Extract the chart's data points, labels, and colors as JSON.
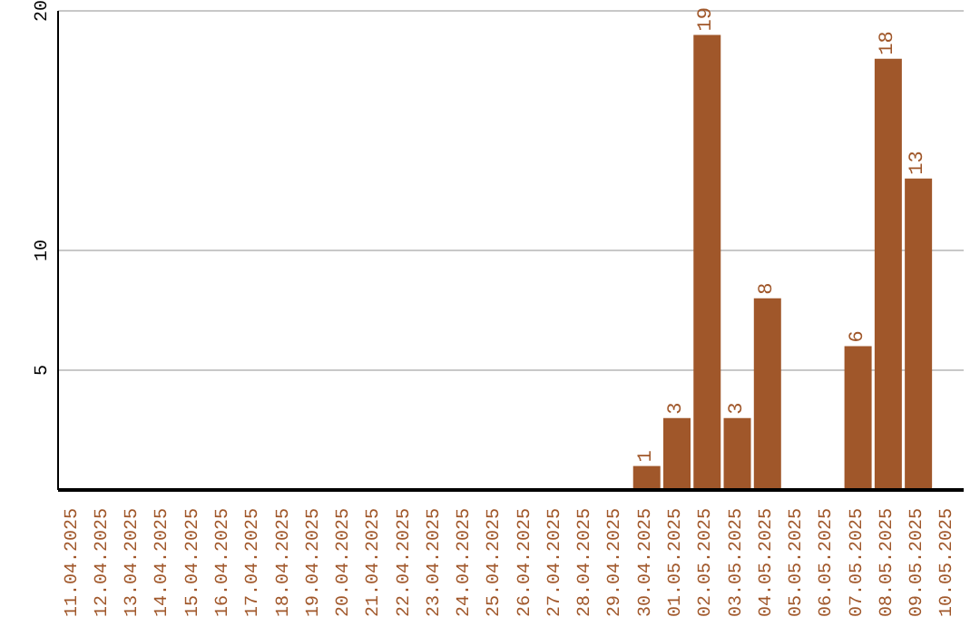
{
  "chart_data": {
    "type": "bar",
    "categories": [
      "11.04.2025",
      "12.04.2025",
      "13.04.2025",
      "14.04.2025",
      "15.04.2025",
      "16.04.2025",
      "17.04.2025",
      "18.04.2025",
      "19.04.2025",
      "20.04.2025",
      "21.04.2025",
      "22.04.2025",
      "23.04.2025",
      "24.04.2025",
      "25.04.2025",
      "26.04.2025",
      "27.04.2025",
      "28.04.2025",
      "29.04.2025",
      "30.04.2025",
      "01.05.2025",
      "02.05.2025",
      "03.05.2025",
      "04.05.2025",
      "05.05.2025",
      "06.05.2025",
      "07.05.2025",
      "08.05.2025",
      "09.05.2025",
      "10.05.2025"
    ],
    "values": [
      null,
      null,
      null,
      null,
      null,
      null,
      null,
      null,
      null,
      null,
      null,
      null,
      null,
      null,
      null,
      null,
      null,
      null,
      null,
      1,
      3,
      19,
      3,
      8,
      null,
      null,
      6,
      18,
      13,
      null
    ],
    "color": "#a0572a",
    "ylim": [
      0,
      20
    ],
    "yticks": [
      5,
      10,
      20
    ],
    "grid": "y",
    "data_labels": true
  }
}
